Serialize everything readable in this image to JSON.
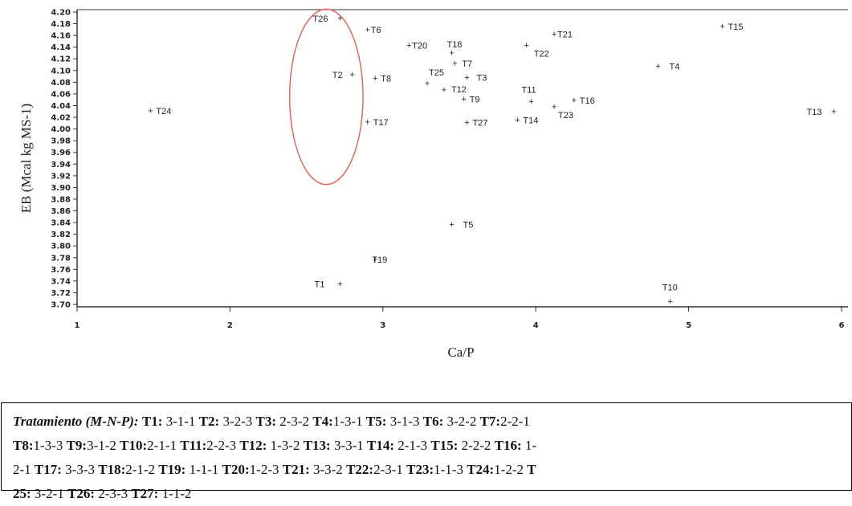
{
  "chart_data": {
    "type": "scatter",
    "xlabel": "Ca/P",
    "ylabel": "EB (Mcal kg MS-1)",
    "xlim": [
      1,
      6
    ],
    "ylim": [
      3.7,
      4.2
    ],
    "x_ticks": [
      "1",
      "2",
      "3",
      "4",
      "5",
      "6"
    ],
    "y_ticks": [
      "3.70",
      "3.72",
      "3.74",
      "3.76",
      "3.78",
      "3.80",
      "3.82",
      "3.84",
      "3.86",
      "3.88",
      "3.90",
      "3.92",
      "3.94",
      "3.96",
      "3.98",
      "4.00",
      "4.02",
      "4.04",
      "4.06",
      "4.08",
      "4.10",
      "4.12",
      "4.14",
      "4.16",
      "4.18",
      "4.20"
    ],
    "marker": "+",
    "grid": false,
    "annotation": {
      "shape": "ellipse",
      "color": "#e06666",
      "center": [
        2.63,
        4.055
      ],
      "radii": [
        0.24,
        0.15
      ]
    },
    "points": [
      {
        "label": "T1",
        "x": 2.72,
        "y": 3.735
      },
      {
        "label": "T2",
        "x": 2.8,
        "y": 4.093
      },
      {
        "label": "T3",
        "x": 3.55,
        "y": 4.088
      },
      {
        "label": "T4",
        "x": 4.8,
        "y": 4.107
      },
      {
        "label": "T5",
        "x": 3.45,
        "y": 3.837
      },
      {
        "label": "T6",
        "x": 2.9,
        "y": 4.17
      },
      {
        "label": "T7",
        "x": 3.47,
        "y": 4.112
      },
      {
        "label": "T8",
        "x": 2.95,
        "y": 4.087
      },
      {
        "label": "T9",
        "x": 3.53,
        "y": 4.051
      },
      {
        "label": "T10",
        "x": 4.88,
        "y": 3.705
      },
      {
        "label": "T11",
        "x": 3.97,
        "y": 4.047
      },
      {
        "label": "T12",
        "x": 3.4,
        "y": 4.067
      },
      {
        "label": "T13",
        "x": 5.95,
        "y": 4.03
      },
      {
        "label": "T14",
        "x": 3.88,
        "y": 4.015
      },
      {
        "label": "T15",
        "x": 5.22,
        "y": 4.175
      },
      {
        "label": "T16",
        "x": 4.25,
        "y": 4.049
      },
      {
        "label": "T17",
        "x": 2.9,
        "y": 4.012
      },
      {
        "label": "T18",
        "x": 3.45,
        "y": 4.13
      },
      {
        "label": "T19",
        "x": 2.95,
        "y": 3.777
      },
      {
        "label": "T20",
        "x": 3.17,
        "y": 4.143
      },
      {
        "label": "T21",
        "x": 4.12,
        "y": 4.162
      },
      {
        "label": "T22",
        "x": 3.94,
        "y": 4.143
      },
      {
        "label": "T23",
        "x": 4.12,
        "y": 4.038
      },
      {
        "label": "T24",
        "x": 1.48,
        "y": 4.031
      },
      {
        "label": "T25",
        "x": 3.29,
        "y": 4.078
      },
      {
        "label": "T26",
        "x": 2.72,
        "y": 4.189
      },
      {
        "label": "T27",
        "x": 3.55,
        "y": 4.011
      }
    ]
  },
  "legend": {
    "title": "Tratamiento (M-N-P):",
    "entries": [
      {
        "code": "T1:",
        "value": " 3-1-1 "
      },
      {
        "code": "T2:",
        "value": " 3-2-3 "
      },
      {
        "code": "T3:",
        "value": " 2-3-2 "
      },
      {
        "code": "T4:",
        "value": "1-3-1 "
      },
      {
        "code": "T5:",
        "value": " 3-1-3 "
      },
      {
        "code": "T6:",
        "value": " 3-2-2 "
      },
      {
        "code": "T7:",
        "value": "2-2-1"
      },
      {
        "code": "T8:",
        "value": "1-3-3 "
      },
      {
        "code": "T9:",
        "value": "3-1-2 "
      },
      {
        "code": "T10:",
        "value": "2-1-1 "
      },
      {
        "code": "T11:",
        "value": "2-2-3 "
      },
      {
        "code": "T12:",
        "value": " 1-3-2 "
      },
      {
        "code": "T13:",
        "value": " 3-3-1 "
      },
      {
        "code": "T14:",
        "value": " 2-1-3 "
      },
      {
        "code": "T15:",
        "value": " 2-2-2 "
      },
      {
        "code": "T16:",
        "value": " 1-"
      },
      {
        "code": "",
        "value": "2-1 "
      },
      {
        "code": "T17:",
        "value": " 3-3-3 "
      },
      {
        "code": "T18:",
        "value": "2-1-2 "
      },
      {
        "code": "T19:",
        "value": " 1-1-1 "
      },
      {
        "code": "T20:",
        "value": "1-2-3 "
      },
      {
        "code": "T21:",
        "value": " 3-3-2 "
      },
      {
        "code": "T22:",
        "value": "2-3-1 "
      },
      {
        "code": "T23:",
        "value": "1-1-3 "
      },
      {
        "code": "T24:",
        "value": "1-2-2 "
      },
      {
        "code": "T",
        "value": ""
      },
      {
        "code": "25:",
        "value": " 3-2-1 "
      },
      {
        "code": "T26:",
        "value": " 2-3-3 "
      },
      {
        "code": "T27:",
        "value": " 1-1-2"
      }
    ],
    "line_breaks": [
      7,
      16,
      26
    ]
  }
}
